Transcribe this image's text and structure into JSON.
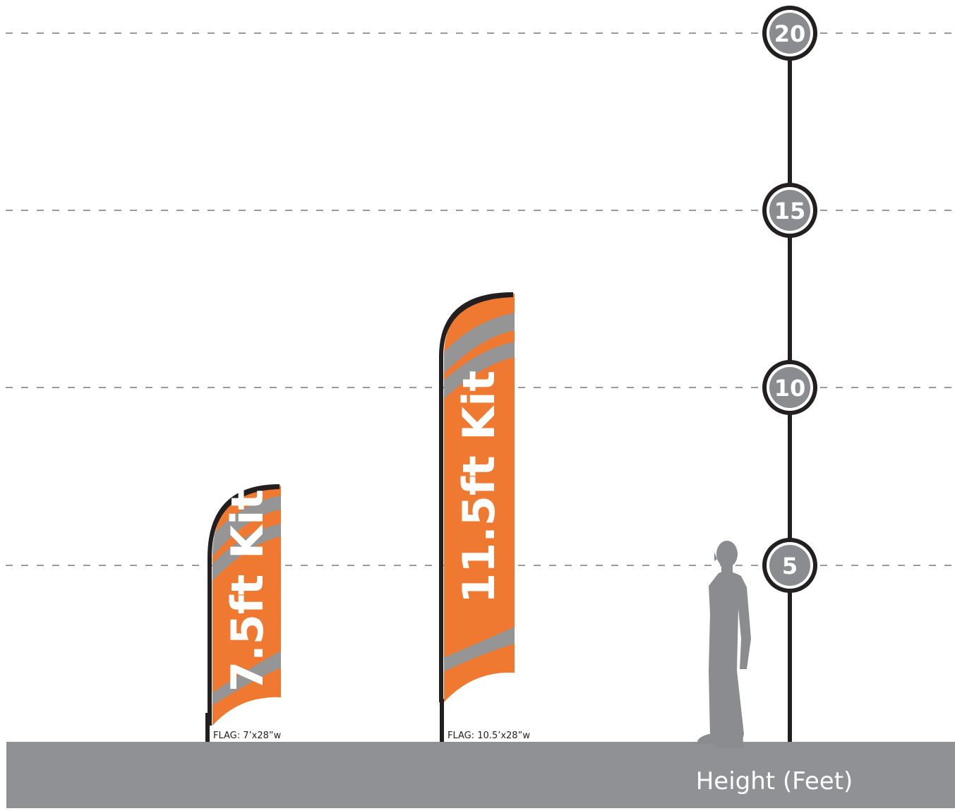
{
  "scale": {
    "markers": [
      "20",
      "15",
      "10",
      "5"
    ]
  },
  "flags": [
    {
      "title": "7.5ft Kit",
      "caption": "FLAG: 7’x28”w"
    },
    {
      "title": "11.5ft Kit",
      "caption": "FLAG: 10.5’x28”w"
    }
  ],
  "ground": {
    "label": "Height (Feet)"
  },
  "colors": {
    "flag_orange": "#ef7930",
    "swoosh_gray": "#959595",
    "pole": "#231f20",
    "marker_fill": "#8a8c8f",
    "ground": "#8f9194",
    "silhouette": "#8a8c8f",
    "dashed_line": "#9a9a9a"
  }
}
